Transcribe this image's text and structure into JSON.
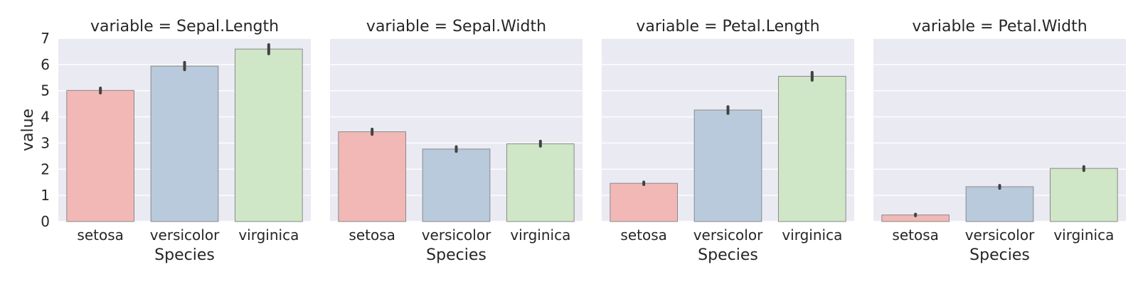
{
  "chart_data": [
    {
      "type": "bar",
      "title": "variable = Sepal.Length",
      "xlabel": "Species",
      "ylabel": "value",
      "categories": [
        "setosa",
        "versicolor",
        "virginica"
      ],
      "values": [
        5.01,
        5.94,
        6.59
      ],
      "ci": [
        [
          4.91,
          5.1
        ],
        [
          5.8,
          6.08
        ],
        [
          6.41,
          6.76
        ]
      ],
      "ylim": [
        0,
        7
      ],
      "yticks": [
        0,
        1,
        2,
        3,
        4,
        5,
        6,
        7
      ],
      "colors": [
        "#f2b8b6",
        "#b8cadb",
        "#cfe6c7"
      ],
      "grid": true
    },
    {
      "type": "bar",
      "title": "variable = Sepal.Width",
      "xlabel": "Species",
      "ylabel": "",
      "categories": [
        "setosa",
        "versicolor",
        "virginica"
      ],
      "values": [
        3.43,
        2.77,
        2.97
      ],
      "ci": [
        [
          3.33,
          3.53
        ],
        [
          2.68,
          2.86
        ],
        [
          2.88,
          3.07
        ]
      ],
      "ylim": [
        0,
        7
      ],
      "colors": [
        "#f2b8b6",
        "#b8cadb",
        "#cfe6c7"
      ],
      "grid": true
    },
    {
      "type": "bar",
      "title": "variable = Petal.Length",
      "xlabel": "Species",
      "ylabel": "",
      "categories": [
        "setosa",
        "versicolor",
        "virginica"
      ],
      "values": [
        1.46,
        4.26,
        5.55
      ],
      "ci": [
        [
          1.41,
          1.51
        ],
        [
          4.13,
          4.39
        ],
        [
          5.4,
          5.7
        ]
      ],
      "ylim": [
        0,
        7
      ],
      "colors": [
        "#f2b8b6",
        "#b8cadb",
        "#cfe6c7"
      ],
      "grid": true
    },
    {
      "type": "bar",
      "title": "variable = Petal.Width",
      "xlabel": "Species",
      "ylabel": "",
      "categories": [
        "setosa",
        "versicolor",
        "virginica"
      ],
      "values": [
        0.25,
        1.33,
        2.03
      ],
      "ci": [
        [
          0.22,
          0.28
        ],
        [
          1.27,
          1.38
        ],
        [
          1.95,
          2.1
        ]
      ],
      "ylim": [
        0,
        7
      ],
      "colors": [
        "#f2b8b6",
        "#b8cadb",
        "#cfe6c7"
      ],
      "grid": true
    }
  ],
  "style": {
    "panel_background": "#eaeaf2",
    "grid_color": "#ffffff",
    "text_color": "#262626",
    "error_bar_color": "#424242"
  }
}
